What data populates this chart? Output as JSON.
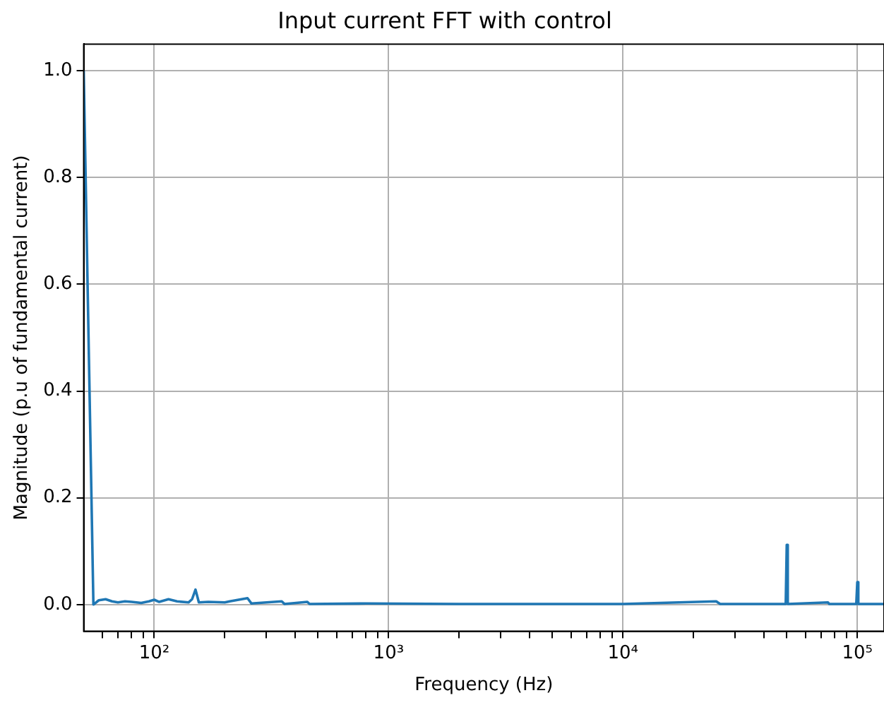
{
  "chart_data": {
    "type": "line",
    "title": "Input current FFT with control",
    "xlabel": "Frequency (Hz)",
    "ylabel": "Magnitude (p.u of fundamental current)",
    "log": "x",
    "grid": true,
    "marker": "none",
    "line_style": "solid",
    "xlim": [
      50,
      130000
    ],
    "ylim": [
      -0.05,
      1.05
    ],
    "xticks": [
      {
        "value": 60,
        "label": null
      },
      {
        "value": 70,
        "label": null
      },
      {
        "value": 80,
        "label": null
      },
      {
        "value": 90,
        "label": null
      },
      {
        "value": 100,
        "label": "10²"
      },
      {
        "value": 200,
        "label": null
      },
      {
        "value": 300,
        "label": null
      },
      {
        "value": 400,
        "label": null
      },
      {
        "value": 500,
        "label": null
      },
      {
        "value": 600,
        "label": null
      },
      {
        "value": 700,
        "label": null
      },
      {
        "value": 800,
        "label": null
      },
      {
        "value": 900,
        "label": null
      },
      {
        "value": 1000,
        "label": "10³"
      },
      {
        "value": 2000,
        "label": null
      },
      {
        "value": 3000,
        "label": null
      },
      {
        "value": 4000,
        "label": null
      },
      {
        "value": 5000,
        "label": null
      },
      {
        "value": 6000,
        "label": null
      },
      {
        "value": 7000,
        "label": null
      },
      {
        "value": 8000,
        "label": null
      },
      {
        "value": 9000,
        "label": null
      },
      {
        "value": 10000,
        "label": "10⁴"
      },
      {
        "value": 20000,
        "label": null
      },
      {
        "value": 30000,
        "label": null
      },
      {
        "value": 40000,
        "label": null
      },
      {
        "value": 50000,
        "label": null
      },
      {
        "value": 60000,
        "label": null
      },
      {
        "value": 70000,
        "label": null
      },
      {
        "value": 80000,
        "label": null
      },
      {
        "value": 90000,
        "label": null
      },
      {
        "value": 100000,
        "label": "10⁵"
      }
    ],
    "yticks": [
      {
        "value": 0.0,
        "label": "0.0"
      },
      {
        "value": 0.2,
        "label": "0.2"
      },
      {
        "value": 0.4,
        "label": "0.4"
      },
      {
        "value": 0.6,
        "label": "0.6"
      },
      {
        "value": 0.8,
        "label": "0.8"
      },
      {
        "value": 1.0,
        "label": "1.0"
      }
    ],
    "series": [
      {
        "color": "#1f77b4",
        "x": [
          50,
          55,
          58,
          62,
          66,
          70,
          75,
          80,
          88,
          95,
          100,
          105,
          115,
          125,
          140,
          145,
          150,
          155,
          170,
          200,
          210,
          250,
          260,
          350,
          360,
          450,
          460,
          800,
          2000,
          10000,
          25000,
          26000,
          49500,
          50000,
          50500,
          75000,
          76000,
          99000,
          100000,
          101000,
          130000
        ],
        "values": [
          1.0,
          0.0,
          0.008,
          0.01,
          0.006,
          0.004,
          0.006,
          0.005,
          0.003,
          0.006,
          0.009,
          0.005,
          0.01,
          0.006,
          0.004,
          0.01,
          0.028,
          0.004,
          0.005,
          0.004,
          0.006,
          0.012,
          0.002,
          0.006,
          0.001,
          0.005,
          0.001,
          0.002,
          0.001,
          0.001,
          0.006,
          0.001,
          0.001,
          0.112,
          0.001,
          0.004,
          0.001,
          0.001,
          0.042,
          0.001,
          0.001
        ]
      }
    ]
  }
}
